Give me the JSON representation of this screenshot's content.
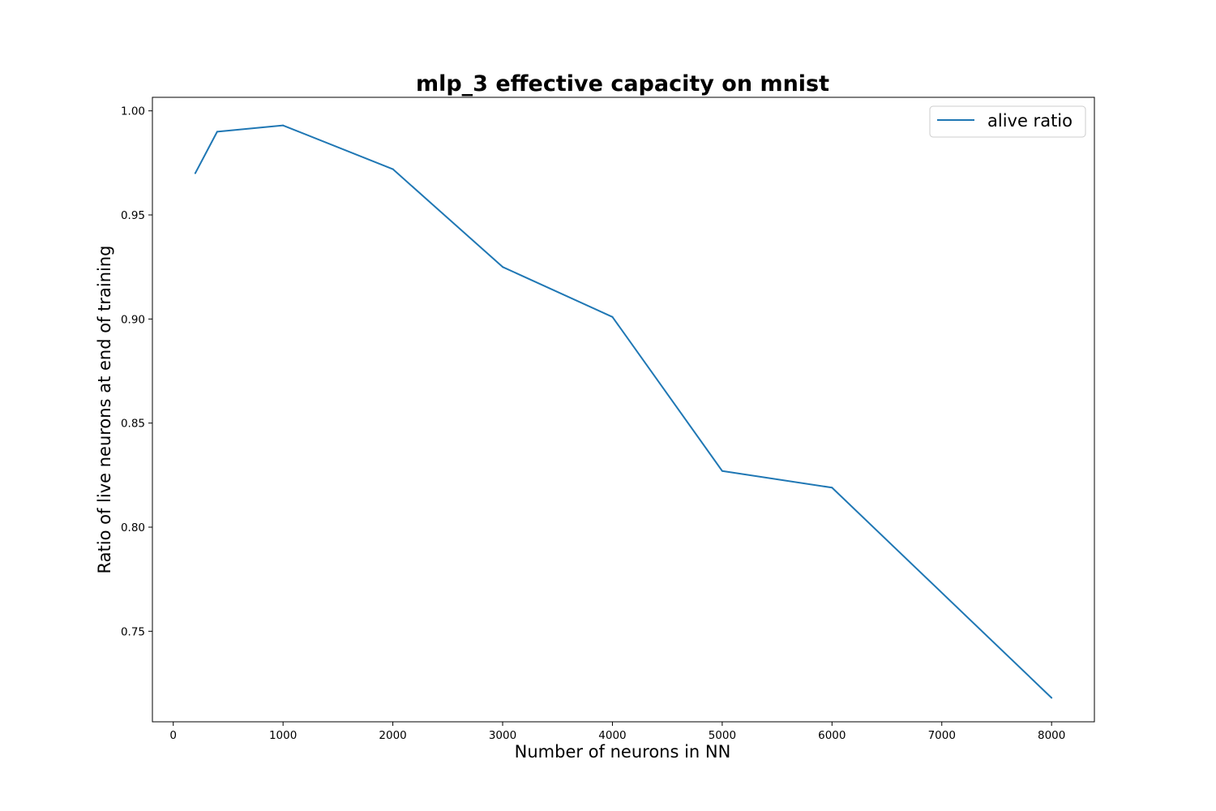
{
  "chart_data": {
    "type": "line",
    "title": "mlp_3 effective capacity on mnist",
    "xlabel": "Number of neurons in NN",
    "ylabel": "Ratio of live neurons at end of training",
    "xlim": [
      -190,
      8390
    ],
    "ylim": [
      0.7065,
      1.0065
    ],
    "xticks": [
      0,
      1000,
      2000,
      3000,
      4000,
      5000,
      6000,
      7000,
      8000
    ],
    "xtick_labels": [
      "0",
      "1000",
      "2000",
      "3000",
      "4000",
      "5000",
      "6000",
      "7000",
      "8000"
    ],
    "yticks": [
      0.75,
      0.8,
      0.85,
      0.9,
      0.95,
      1.0
    ],
    "ytick_labels": [
      "0.75",
      "0.80",
      "0.85",
      "0.90",
      "0.95",
      "1.00"
    ],
    "grid": false,
    "legend_position": "top-right",
    "series": [
      {
        "name": "alive ratio",
        "color": "#1f77b4",
        "x": [
          200,
          400,
          1000,
          2000,
          3000,
          4000,
          5000,
          6000,
          8000
        ],
        "y": [
          0.97,
          0.99,
          0.993,
          0.972,
          0.925,
          0.901,
          0.827,
          0.819,
          0.718
        ]
      }
    ]
  }
}
